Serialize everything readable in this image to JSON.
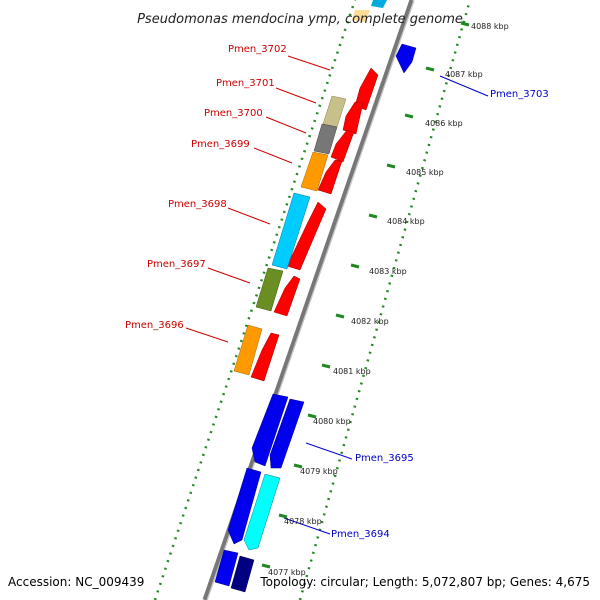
{
  "title": "Pseudomonas mendocina ymp, complete genome",
  "footer": {
    "accession": "Accession: NC_009439",
    "summary": "Topology: circular; Length: 5,072,807 bp; Genes: 4,675"
  },
  "colors": {
    "forward_label": "#cc0000",
    "reverse_label": "#0000cc",
    "forward_gene": "#ff0000",
    "reverse_gene": "#0000ee",
    "tick": "#228822",
    "backbone": "#777777"
  },
  "scale_labels": [
    "4077 kbp",
    "4078 kbp",
    "4079 kbp",
    "4080 kbp",
    "4081 kbp",
    "4082 kbp",
    "4083 kbp",
    "4084 kbp",
    "4085 kbp",
    "4086 kbp",
    "4087 kbp",
    "4088 kbp"
  ],
  "forward_gene_labels": [
    "Pmen_3702",
    "Pmen_3701",
    "Pmen_3700",
    "Pmen_3699",
    "Pmen_3698",
    "Pmen_3697",
    "Pmen_3696"
  ],
  "reverse_gene_labels": [
    "Pmen_3703",
    "Pmen_3695",
    "Pmen_3694"
  ]
}
